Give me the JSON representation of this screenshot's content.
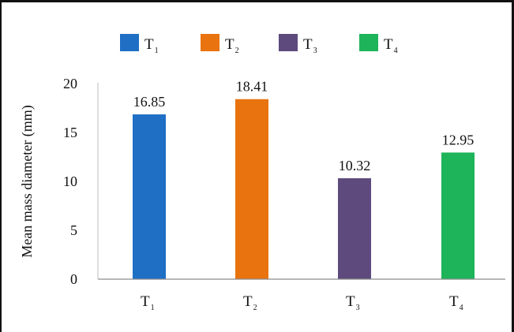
{
  "chart_data": {
    "type": "bar",
    "title": "",
    "xlabel": "",
    "ylabel": "Mean mass diameter (mm)",
    "ylim": [
      0,
      20
    ],
    "yticks": [
      "0",
      "5",
      "10",
      "15",
      "20"
    ],
    "grid": false,
    "legend_position": "top",
    "categories": [
      {
        "base": "T",
        "sub": "1"
      },
      {
        "base": "T",
        "sub": "2"
      },
      {
        "base": "T",
        "sub": "3"
      },
      {
        "base": "T",
        "sub": "4"
      }
    ],
    "values": [
      16.85,
      18.41,
      10.32,
      12.95
    ],
    "value_labels": [
      "16.85",
      "18.41",
      "10.32",
      "12.95"
    ],
    "colors": [
      "#1f6fc5",
      "#e9730f",
      "#5e4a7d",
      "#1db45a"
    ]
  }
}
